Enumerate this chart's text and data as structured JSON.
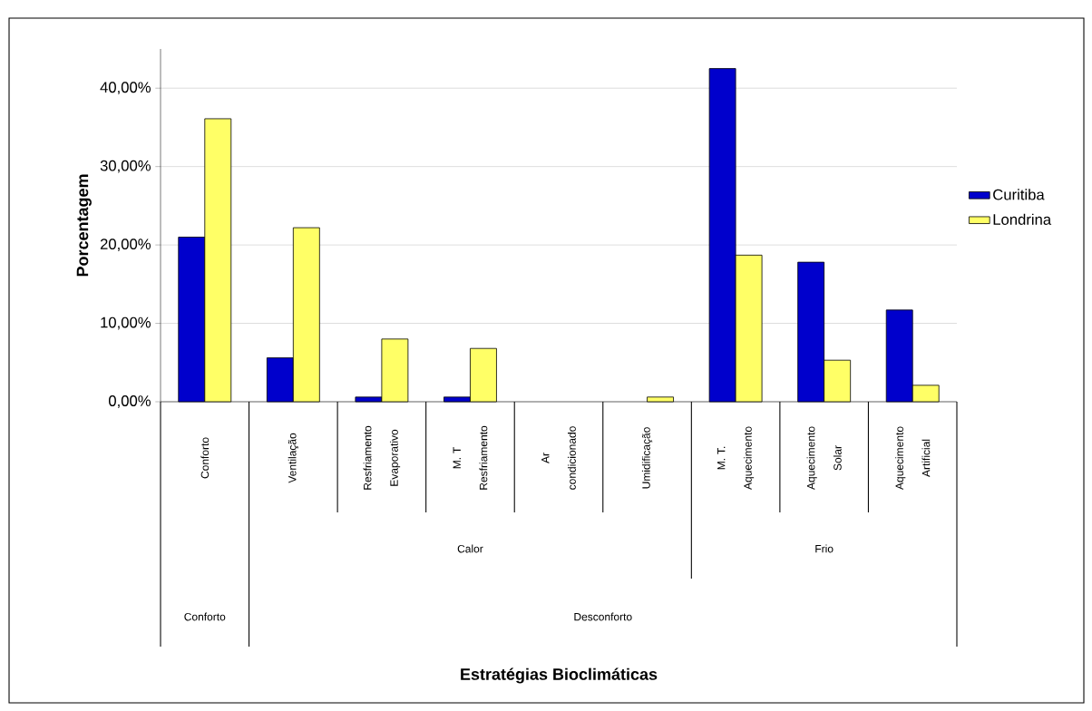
{
  "chart_data": {
    "type": "bar",
    "ylabel": "Porcentagem",
    "categories": [
      "Conforto",
      "Ventilação",
      "Resfriamento Evaporativo",
      "M. T Resfriamento",
      "Ar condicionado",
      "Umidificação",
      "M. T. Aquecimento",
      "Aquecimento Solar",
      "Aquecimento Artificial"
    ],
    "series": [
      {
        "name": "Curitiba",
        "color": "#0000cc",
        "values": [
          21.0,
          5.6,
          0.6,
          0.6,
          null,
          null,
          42.5,
          17.8,
          11.7
        ]
      },
      {
        "name": "Londrina",
        "color": "#ffff66",
        "values": [
          36.1,
          22.2,
          8.0,
          6.8,
          null,
          0.6,
          18.7,
          5.3,
          2.1
        ]
      }
    ],
    "annotations": [
      "Calor",
      "Frio",
      "Conforto",
      "Desconforto",
      "**Estratégias Bioclimáticas**"
    ],
    "ylim": [
      0,
      45
    ],
    "yticks": [
      {
        "value": 0,
        "label": "0,00%"
      },
      {
        "value": 10,
        "label": "10,00%"
      },
      {
        "value": 20,
        "label": "20,00%"
      },
      {
        "value": 30,
        "label": "30,00%"
      },
      {
        "value": 40,
        "label": "40,00%"
      }
    ],
    "grid": "y",
    "legend": "right"
  }
}
